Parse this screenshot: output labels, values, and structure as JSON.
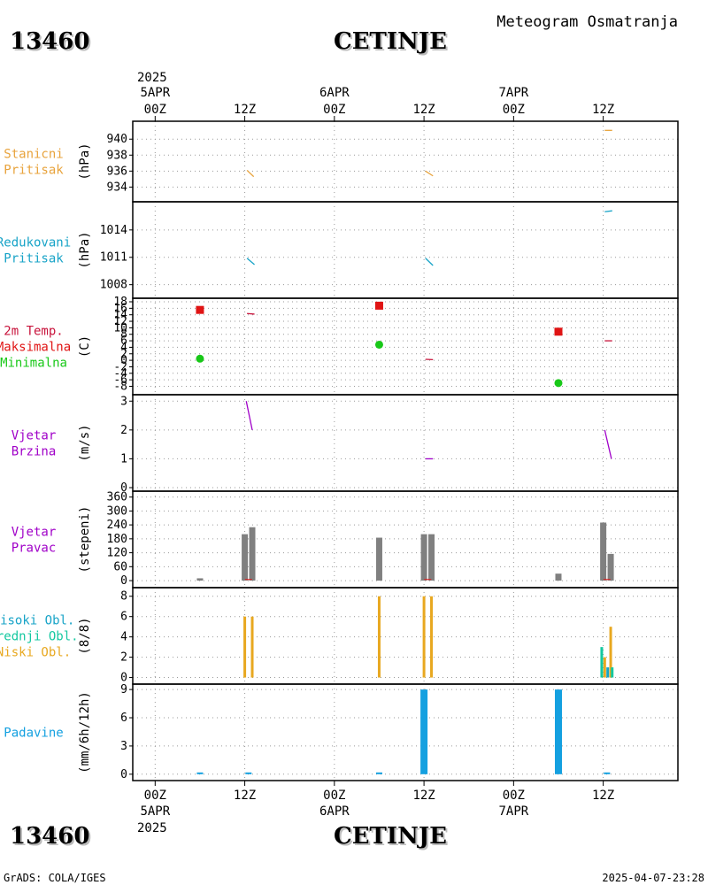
{
  "header": {
    "station_code": "13460",
    "station_name": "CETINJE",
    "chart_type": "Meteogram Osmatranja"
  },
  "footer": {
    "left": "GrADS: COLA/IGES",
    "right": "2025-04-07-23:28"
  },
  "time_axis": {
    "year": "2025",
    "ticks": [
      {
        "hour": 0,
        "label": "00Z",
        "date": "5APR"
      },
      {
        "hour": 12,
        "label": "12Z",
        "date": ""
      },
      {
        "hour": 24,
        "label": "00Z",
        "date": "6APR"
      },
      {
        "hour": 36,
        "label": "12Z",
        "date": ""
      },
      {
        "hour": 48,
        "label": "00Z",
        "date": "7APR"
      },
      {
        "hour": 60,
        "label": "12Z",
        "date": ""
      }
    ],
    "range_hours": [
      -3,
      70
    ]
  },
  "colors": {
    "orange": "#e8a33c",
    "cyan": "#17a3c7",
    "red": "#e01414",
    "green": "#18c818",
    "purple": "#a000c8",
    "gray": "#808080",
    "teal": "#14c8a0",
    "gold": "#e8a820",
    "precip": "#14a0e0",
    "crimson": "#c8143c"
  },
  "chart_data": [
    {
      "type": "line",
      "panel": "pressure_station",
      "label_lines": [
        "Stanicni",
        "Pritisak"
      ],
      "label_color": "orange",
      "ylabel": "(hPa)",
      "ylim": [
        932.6,
        941.8
      ],
      "yticks": [
        934,
        936,
        938,
        940
      ],
      "series": [
        {
          "color": "orange",
          "segments": [
            [
              [
                12.3,
                936.1
              ],
              [
                13.2,
                935.3
              ]
            ],
            [
              [
                36.2,
                936.0
              ],
              [
                37.2,
                935.4
              ]
            ],
            [
              [
                60.2,
                941.1
              ],
              [
                61.2,
                941.1
              ]
            ]
          ]
        }
      ]
    },
    {
      "type": "line",
      "panel": "pressure_reduced",
      "label_lines": [
        "Redukovani",
        "Pritisak"
      ],
      "label_color": "cyan",
      "ylabel": "(hPa)",
      "ylim": [
        1006.9,
        1016.7
      ],
      "yticks": [
        1008,
        1011,
        1014
      ],
      "series": [
        {
          "color": "cyan",
          "segments": [
            [
              [
                12.3,
                1010.9
              ],
              [
                13.3,
                1010.2
              ]
            ],
            [
              [
                36.2,
                1010.9
              ],
              [
                37.2,
                1010.1
              ]
            ],
            [
              [
                60.2,
                1016.0
              ],
              [
                61.2,
                1016.1
              ]
            ]
          ]
        }
      ]
    },
    {
      "type": "scatter",
      "panel": "temperature",
      "label_lines": [
        "2m Temp.",
        "Maksimalna",
        "Minimalna"
      ],
      "label_colors": [
        "crimson",
        "red",
        "green"
      ],
      "ylabel": "(C)",
      "ylim": [
        -9.5,
        18
      ],
      "yticks": [
        -8,
        -6,
        -4,
        -2,
        0,
        2,
        4,
        6,
        8,
        10,
        12,
        14,
        16,
        18
      ],
      "series": [
        {
          "name": "2m Temp.",
          "color": "crimson",
          "kind": "line",
          "segments": [
            [
              [
                12.3,
                14.4
              ],
              [
                13.3,
                14.2
              ]
            ],
            [
              [
                36.2,
                0.3
              ],
              [
                37.2,
                0.2
              ]
            ],
            [
              [
                60.2,
                6.0
              ],
              [
                61.2,
                6.0
              ]
            ]
          ]
        },
        {
          "name": "Maksimalna",
          "color": "red",
          "kind": "square",
          "points": [
            [
              6,
              15.5
            ],
            [
              30,
              16.8
            ],
            [
              54,
              8.8
            ]
          ]
        },
        {
          "name": "Minimalna",
          "color": "green",
          "kind": "circle",
          "points": [
            [
              6,
              0.5
            ],
            [
              30,
              4.8
            ],
            [
              54,
              -7.0
            ]
          ]
        }
      ]
    },
    {
      "type": "line",
      "panel": "wind_speed",
      "label_lines": [
        "Vjetar",
        "Brzina"
      ],
      "label_color": "purple",
      "ylabel": "(m/s)",
      "ylim": [
        0,
        3.1
      ],
      "yticks": [
        0,
        1,
        2,
        3
      ],
      "series": [
        {
          "color": "purple",
          "segments": [
            [
              [
                12.2,
                3.0
              ],
              [
                13.0,
                2.0
              ]
            ],
            [
              [
                36.2,
                1.0
              ],
              [
                37.2,
                1.0
              ]
            ],
            [
              [
                60.2,
                2.0
              ],
              [
                61.1,
                1.0
              ]
            ]
          ]
        }
      ]
    },
    {
      "type": "bar",
      "panel": "wind_direction",
      "label_lines": [
        "Vjetar",
        "Pravac"
      ],
      "label_color": "purple",
      "ylabel": "(stepeni)",
      "ylim": [
        -15,
        370
      ],
      "yticks": [
        0,
        60,
        120,
        180,
        240,
        300,
        360
      ],
      "bars": [
        {
          "t": 6,
          "v": 10,
          "color": "gray"
        },
        {
          "t": 12,
          "v": 200,
          "color": "gray"
        },
        {
          "t": 13,
          "v": 230,
          "color": "gray"
        },
        {
          "t": 30,
          "v": 185,
          "color": "gray"
        },
        {
          "t": 36,
          "v": 200,
          "color": "gray"
        },
        {
          "t": 37,
          "v": 200,
          "color": "gray"
        },
        {
          "t": 54,
          "v": 30,
          "color": "gray"
        },
        {
          "t": 60,
          "v": 250,
          "color": "gray"
        },
        {
          "t": 61,
          "v": 115,
          "color": "gray"
        }
      ],
      "ticks_marks": [
        [
          12.5,
          5
        ],
        [
          36.5,
          5
        ],
        [
          60.5,
          5
        ]
      ]
    },
    {
      "type": "bar",
      "panel": "clouds",
      "label_lines": [
        "Visoki Obl.",
        "Srednji Obl.",
        "Niski Obl."
      ],
      "label_colors": [
        "cyan",
        "teal",
        "gold"
      ],
      "ylabel": "(8/8)",
      "ylim": [
        -0.3,
        8.5
      ],
      "yticks": [
        0,
        2,
        4,
        6,
        8
      ],
      "bars": [
        {
          "t": 12,
          "v": 6,
          "color": "gold"
        },
        {
          "t": 13,
          "v": 6,
          "color": "gold"
        },
        {
          "t": 30,
          "v": 8,
          "color": "gold"
        },
        {
          "t": 36,
          "v": 8,
          "color": "gold"
        },
        {
          "t": 37,
          "v": 8,
          "color": "gold"
        },
        {
          "t": 59.8,
          "v": 3,
          "color": "teal"
        },
        {
          "t": 60.2,
          "v": 2,
          "color": "gold"
        },
        {
          "t": 60.6,
          "v": 1,
          "color": "cyan"
        },
        {
          "t": 61.0,
          "v": 5,
          "color": "gold"
        },
        {
          "t": 61.2,
          "v": 1,
          "color": "teal"
        }
      ]
    },
    {
      "type": "bar",
      "panel": "precipitation",
      "label_lines": [
        "Padavine"
      ],
      "label_color": "precip",
      "ylabel": "(mm/6h/12h)",
      "ylim": [
        -0.3,
        9.2
      ],
      "yticks": [
        0,
        3,
        6,
        9
      ],
      "bars": [
        {
          "t": 6,
          "v": 0.1,
          "color": "precip"
        },
        {
          "t": 12.5,
          "v": 0.05,
          "color": "precip"
        },
        {
          "t": 30,
          "v": 0.05,
          "color": "precip"
        },
        {
          "t": 36,
          "v": 9,
          "color": "precip",
          "wide": true
        },
        {
          "t": 54,
          "v": 9,
          "color": "precip",
          "wide": true
        },
        {
          "t": 60.5,
          "v": 0.05,
          "color": "precip"
        }
      ]
    }
  ]
}
